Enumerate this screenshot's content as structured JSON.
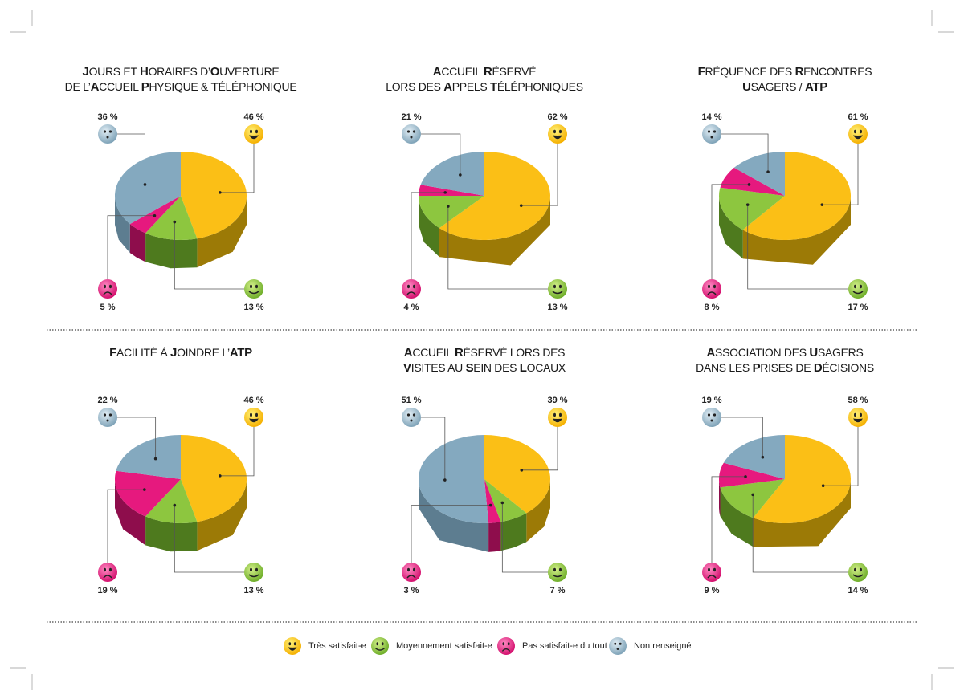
{
  "legend": [
    {
      "key": "tres",
      "label": "Très satisfait-e",
      "color": "#fbbf16"
    },
    {
      "key": "moyen",
      "label": "Moyennement satisfait-e",
      "color": "#8dc63f"
    },
    {
      "key": "pas",
      "label": "Pas satisfait-e du tout",
      "color": "#e6197e"
    },
    {
      "key": "non",
      "label": "Non renseigné",
      "color": "#84a9bf"
    }
  ],
  "chart_data": [
    {
      "type": "pie",
      "title": [
        [
          "J",
          1
        ],
        [
          "OURS ET ",
          0
        ],
        [
          "H",
          1
        ],
        [
          "ORAIRES D’",
          0
        ],
        [
          "O",
          1
        ],
        [
          "UVERTURE",
          0
        ],
        [
          "\n",
          0
        ],
        [
          "DE L’",
          0
        ],
        [
          "A",
          1
        ],
        [
          "CCUEIL ",
          0
        ],
        [
          "P",
          1
        ],
        [
          "HYSIQUE & ",
          0
        ],
        [
          "T",
          1
        ],
        [
          "ÉLÉPHONIQUE",
          0
        ]
      ],
      "labels": [
        "Très satisfait-e",
        "Moyennement satisfait-e",
        "Pas satisfait-e du tout",
        "Non renseigné"
      ],
      "values": [
        46,
        13,
        5,
        36
      ],
      "value_labels": [
        "46 %",
        "13 %",
        "5 %",
        "36 %"
      ]
    },
    {
      "type": "pie",
      "title": [
        [
          "A",
          1
        ],
        [
          "CCUEIL ",
          0
        ],
        [
          "R",
          1
        ],
        [
          "ÉSERVÉ",
          0
        ],
        [
          "\n",
          0
        ],
        [
          "LORS DES ",
          0
        ],
        [
          "A",
          1
        ],
        [
          "PPELS ",
          0
        ],
        [
          "T",
          1
        ],
        [
          "ÉLÉPHONIQUES",
          0
        ]
      ],
      "labels": [
        "Très satisfait-e",
        "Moyennement satisfait-e",
        "Pas satisfait-e du tout",
        "Non renseigné"
      ],
      "values": [
        62,
        13,
        4,
        21
      ],
      "value_labels": [
        "62 %",
        "13 %",
        "4 %",
        "21 %"
      ]
    },
    {
      "type": "pie",
      "title": [
        [
          "F",
          1
        ],
        [
          "RÉQUENCE DES ",
          0
        ],
        [
          "R",
          1
        ],
        [
          "ENCONTRES",
          0
        ],
        [
          "\n",
          0
        ],
        [
          "U",
          1
        ],
        [
          "SAGERS / ",
          0
        ],
        [
          "ATP",
          1
        ]
      ],
      "labels": [
        "Très satisfait-e",
        "Moyennement satisfait-e",
        "Pas satisfait-e du tout",
        "Non renseigné"
      ],
      "values": [
        61,
        17,
        8,
        14
      ],
      "value_labels": [
        "61 %",
        "17 %",
        "8 %",
        "14 %"
      ]
    },
    {
      "type": "pie",
      "title": [
        [
          "F",
          1
        ],
        [
          "ACILITÉ À ",
          0
        ],
        [
          "J",
          1
        ],
        [
          "OINDRE L’",
          0
        ],
        [
          "ATP",
          1
        ]
      ],
      "labels": [
        "Très satisfait-e",
        "Moyennement satisfait-e",
        "Pas satisfait-e du tout",
        "Non renseigné"
      ],
      "values": [
        46,
        13,
        19,
        22
      ],
      "value_labels": [
        "46 %",
        "13 %",
        "19 %",
        "22 %"
      ]
    },
    {
      "type": "pie",
      "title": [
        [
          "A",
          1
        ],
        [
          "CCUEIL ",
          0
        ],
        [
          "R",
          1
        ],
        [
          "ÉSERVÉ LORS DES",
          0
        ],
        [
          "\n",
          0
        ],
        [
          "V",
          1
        ],
        [
          "ISITES AU ",
          0
        ],
        [
          "S",
          1
        ],
        [
          "EIN DES ",
          0
        ],
        [
          "L",
          1
        ],
        [
          "OCAUX",
          0
        ]
      ],
      "labels": [
        "Très satisfait-e",
        "Moyennement satisfait-e",
        "Pas satisfait-e du tout",
        "Non renseigné"
      ],
      "values": [
        39,
        7,
        3,
        51
      ],
      "value_labels": [
        "39 %",
        "7 %",
        "3 %",
        "51 %"
      ]
    },
    {
      "type": "pie",
      "title": [
        [
          "A",
          1
        ],
        [
          "SSOCIATION DES ",
          0
        ],
        [
          "U",
          1
        ],
        [
          "SAGERS",
          0
        ],
        [
          "\n",
          0
        ],
        [
          "DANS LES ",
          0
        ],
        [
          "P",
          1
        ],
        [
          "RISES DE ",
          0
        ],
        [
          "D",
          1
        ],
        [
          "ÉCISIONS",
          0
        ]
      ],
      "labels": [
        "Très satisfait-e",
        "Moyennement satisfait-e",
        "Pas satisfait-e du tout",
        "Non renseigné"
      ],
      "values": [
        58,
        14,
        9,
        19
      ],
      "value_labels": [
        "58 %",
        "14 %",
        "9 %",
        "19 %"
      ]
    }
  ]
}
